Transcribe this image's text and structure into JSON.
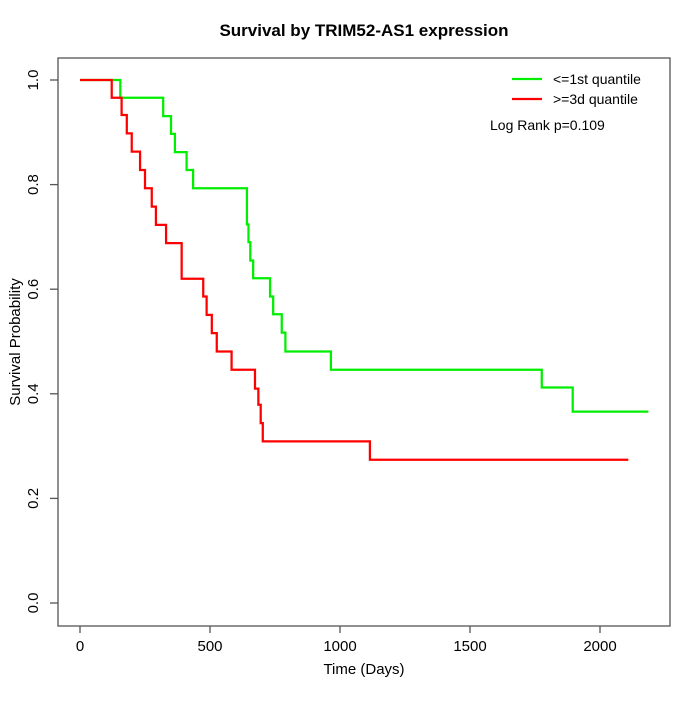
{
  "chart_data": {
    "type": "line",
    "variant": "kaplan_meier_step_plot",
    "title": "Survival by TRIM52-AS1 expression",
    "xlabel": "Time (Days)",
    "ylabel": "Survival Probability",
    "x_ticks": [
      "0",
      "500",
      "1000",
      "1500",
      "2000"
    ],
    "y_ticks": [
      "0.0",
      "0.2",
      "0.4",
      "0.6",
      "0.8",
      "1.0"
    ],
    "xlim": [
      0,
      2270
    ],
    "ylim": [
      0,
      1
    ],
    "grid": false,
    "legend_position": "top-right",
    "annotation": "Log Rank p=0.109",
    "legend": {
      "entries": [
        {
          "label": "<=1st quantile",
          "color": "#00ee00"
        },
        {
          "label": ">=3d quantile",
          "color": "#ff0000"
        }
      ]
    },
    "series": [
      {
        "name": "<=1st quantile",
        "color": "#00ee00",
        "end_day": 2186,
        "steps": [
          [
            0,
            1.0
          ],
          [
            155,
            0.966
          ],
          [
            320,
            0.931
          ],
          [
            350,
            0.897
          ],
          [
            365,
            0.862
          ],
          [
            410,
            0.828
          ],
          [
            435,
            0.793
          ],
          [
            642,
            0.724
          ],
          [
            648,
            0.69
          ],
          [
            655,
            0.655
          ],
          [
            666,
            0.621
          ],
          [
            731,
            0.586
          ],
          [
            743,
            0.552
          ],
          [
            776,
            0.517
          ],
          [
            790,
            0.481
          ],
          [
            965,
            0.446
          ],
          [
            1776,
            0.412
          ],
          [
            1895,
            0.366
          ]
        ]
      },
      {
        "name": ">=3d quantile",
        "color": "#ff0000",
        "end_day": 2109,
        "steps": [
          [
            0,
            1.0
          ],
          [
            122,
            0.966
          ],
          [
            160,
            0.933
          ],
          [
            180,
            0.898
          ],
          [
            199,
            0.863
          ],
          [
            231,
            0.828
          ],
          [
            250,
            0.793
          ],
          [
            276,
            0.758
          ],
          [
            292,
            0.723
          ],
          [
            331,
            0.688
          ],
          [
            391,
            0.62
          ],
          [
            474,
            0.586
          ],
          [
            487,
            0.551
          ],
          [
            507,
            0.516
          ],
          [
            526,
            0.481
          ],
          [
            583,
            0.446
          ],
          [
            673,
            0.41
          ],
          [
            686,
            0.379
          ],
          [
            695,
            0.344
          ],
          [
            703,
            0.309
          ],
          [
            1115,
            0.274
          ]
        ]
      }
    ]
  }
}
